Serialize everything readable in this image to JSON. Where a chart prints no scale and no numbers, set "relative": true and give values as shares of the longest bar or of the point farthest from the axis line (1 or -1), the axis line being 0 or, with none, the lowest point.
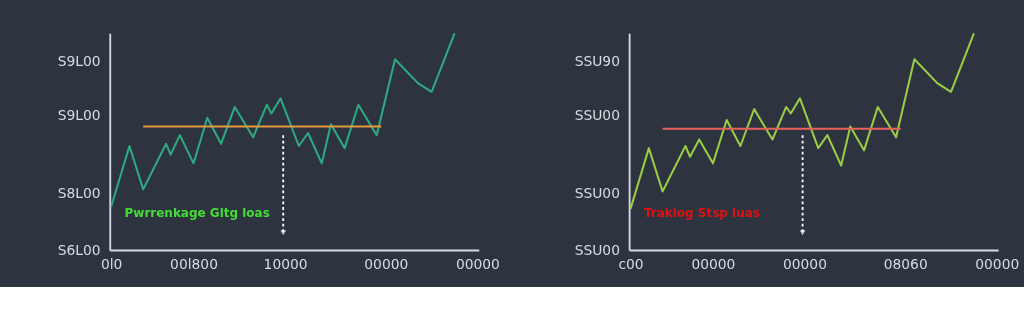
{
  "chart_data": [
    {
      "type": "line",
      "relative": true,
      "tick_labels": "xy",
      "grid": false,
      "legend": false,
      "marker": "none",
      "line_style": "solid",
      "categories": [
        "0l0",
        null,
        null,
        null,
        null,
        null,
        null,
        null,
        null,
        null,
        null,
        null,
        null,
        null,
        null,
        null,
        null,
        null,
        "00l800",
        null,
        null,
        null,
        null,
        null,
        null,
        null,
        null,
        null,
        null,
        null,
        null,
        null,
        null,
        null,
        null,
        null,
        null,
        null,
        "10000",
        null,
        null,
        null,
        null,
        null,
        null,
        null,
        null,
        null,
        null,
        null,
        null,
        null,
        null,
        null,
        null,
        null,
        null,
        null,
        null,
        null,
        "00000",
        null,
        null,
        null,
        null,
        null,
        null,
        null,
        null,
        null,
        null,
        null,
        null,
        null,
        null,
        null,
        null,
        null,
        null,
        null,
        "00000"
      ],
      "series": [
        {
          "color": "#2eaa80",
          "values": [
            0.2,
            null,
            null,
            null,
            0.48,
            null,
            null,
            0.28,
            null,
            null,
            null,
            null,
            0.49,
            0.44,
            null,
            0.53,
            null,
            null,
            0.4,
            null,
            null,
            0.61,
            null,
            null,
            0.49,
            null,
            null,
            0.66,
            null,
            null,
            null,
            0.52,
            null,
            null,
            0.67,
            0.63,
            null,
            0.7,
            null,
            null,
            null,
            0.48,
            null,
            0.54,
            null,
            null,
            0.4,
            null,
            0.58,
            null,
            null,
            0.47,
            null,
            null,
            0.67,
            null,
            null,
            null,
            0.53,
            null,
            null,
            null,
            0.88,
            null,
            null,
            null,
            null,
            0.77,
            null,
            null,
            0.73,
            null,
            null,
            null,
            null,
            1,
            null,
            null,
            null,
            null,
            null
          ]
        },
        {
          "color": "#e39a3e",
          "values": [
            null,
            null,
            null,
            null,
            null,
            null,
            null,
            0.57,
            null,
            null,
            null,
            null,
            null,
            null,
            null,
            null,
            null,
            null,
            null,
            null,
            null,
            null,
            null,
            null,
            null,
            null,
            null,
            null,
            null,
            null,
            null,
            null,
            null,
            null,
            null,
            null,
            null,
            null,
            null,
            null,
            null,
            null,
            null,
            null,
            null,
            null,
            null,
            null,
            null,
            null,
            null,
            null,
            null,
            null,
            null,
            null,
            null,
            null,
            null,
            0.57,
            null,
            null,
            null,
            null,
            null,
            null,
            null,
            null,
            null,
            null,
            null,
            null,
            null,
            null,
            null,
            null,
            null,
            null,
            null,
            null,
            null
          ]
        }
      ],
      "annotations": [
        "S9L00",
        "S9L00",
        "S8L00",
        "S6L00",
        "Pwrrenkage Gltg loas"
      ]
    },
    {
      "type": "line",
      "relative": true,
      "tick_labels": "xy",
      "grid": false,
      "legend": false,
      "marker": "none",
      "line_style": "solid",
      "categories": [
        "c00",
        null,
        null,
        null,
        null,
        null,
        null,
        null,
        null,
        null,
        null,
        null,
        null,
        null,
        null,
        null,
        null,
        null,
        "00000",
        null,
        null,
        null,
        null,
        null,
        null,
        null,
        null,
        null,
        null,
        null,
        null,
        null,
        null,
        null,
        null,
        null,
        null,
        null,
        "00000",
        null,
        null,
        null,
        null,
        null,
        null,
        null,
        null,
        null,
        null,
        null,
        null,
        null,
        null,
        null,
        null,
        null,
        null,
        null,
        null,
        null,
        "08060",
        null,
        null,
        null,
        null,
        null,
        null,
        null,
        null,
        null,
        null,
        null,
        null,
        null,
        null,
        null,
        null,
        null,
        null,
        null,
        "00000"
      ],
      "series": [
        {
          "color": "#9acd44",
          "values": [
            0.19,
            null,
            null,
            null,
            0.47,
            null,
            null,
            0.27,
            null,
            null,
            null,
            null,
            0.48,
            0.43,
            null,
            0.51,
            null,
            null,
            0.4,
            null,
            null,
            0.6,
            null,
            null,
            0.48,
            null,
            null,
            0.65,
            null,
            null,
            null,
            0.51,
            null,
            null,
            0.66,
            0.63,
            null,
            0.7,
            null,
            null,
            null,
            0.47,
            null,
            0.53,
            null,
            null,
            0.39,
            null,
            0.57,
            null,
            null,
            0.46,
            null,
            null,
            0.66,
            null,
            null,
            null,
            0.52,
            null,
            null,
            null,
            0.88,
            null,
            null,
            null,
            null,
            0.77,
            null,
            null,
            0.73,
            null,
            null,
            null,
            null,
            1,
            null,
            null,
            null,
            null,
            null
          ]
        },
        {
          "color": "#e8605a",
          "values": [
            null,
            null,
            null,
            null,
            null,
            null,
            null,
            0.56,
            null,
            null,
            null,
            null,
            null,
            null,
            null,
            null,
            null,
            null,
            null,
            null,
            null,
            null,
            null,
            null,
            null,
            null,
            null,
            null,
            null,
            null,
            null,
            null,
            null,
            null,
            null,
            null,
            null,
            null,
            null,
            null,
            null,
            null,
            null,
            null,
            null,
            null,
            null,
            null,
            null,
            null,
            null,
            null,
            null,
            null,
            null,
            null,
            null,
            null,
            null,
            0.56,
            null,
            null,
            null,
            null,
            null,
            null,
            null,
            null,
            null,
            null,
            null,
            null,
            null,
            null,
            null,
            null,
            null,
            null,
            null,
            null,
            null
          ]
        }
      ],
      "annotations": [
        "SSU90",
        "SSU00",
        "SSU00",
        "SSU00",
        "Trakiog Stsp luas"
      ]
    }
  ]
}
